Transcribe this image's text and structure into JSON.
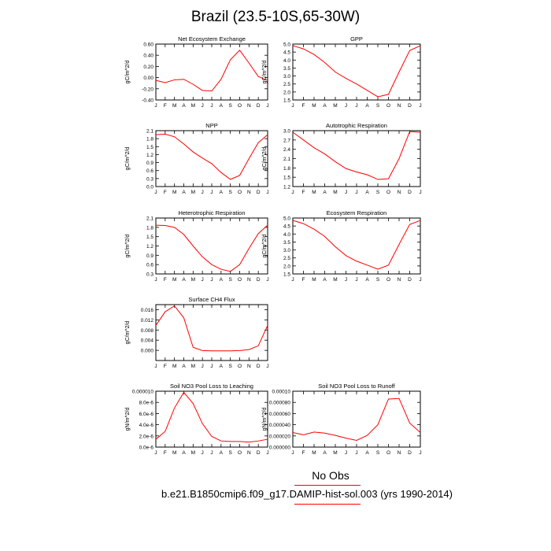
{
  "title": "Brazil (23.5-10S,65-30W)",
  "footer": {
    "no_obs": "No Obs",
    "case": "b.e21.B1850cmip6.f09_g17.DAMIP-hist-sol.003 (yrs 1990-2014)"
  },
  "line_color": "#ff0000",
  "chart_data": [
    {
      "type": "line",
      "title": "Net Ecosystem Exchange",
      "ylabel": "gC/m^2/d",
      "x": [
        "J",
        "F",
        "M",
        "A",
        "M",
        "J",
        "J",
        "A",
        "S",
        "O",
        "N",
        "D",
        "J"
      ],
      "ylim": [
        -0.4,
        0.6
      ],
      "yticks": [
        -0.4,
        -0.2,
        0.0,
        0.2,
        0.4,
        0.6
      ],
      "yticklabels": [
        "-0.40",
        "-0.20",
        "0.00",
        "0.20",
        "0.40",
        "0.60"
      ],
      "values": [
        -0.05,
        -0.09,
        -0.04,
        -0.03,
        -0.12,
        -0.23,
        -0.24,
        -0.03,
        0.32,
        0.49,
        0.26,
        0.02,
        -0.05
      ]
    },
    {
      "type": "line",
      "title": "GPP",
      "ylabel": "gC/m^2/d",
      "x": [
        "J",
        "F",
        "M",
        "A",
        "M",
        "J",
        "J",
        "A",
        "S",
        "O",
        "N",
        "D",
        "J"
      ],
      "ylim": [
        1.5,
        5.0
      ],
      "yticks": [
        1.5,
        2.0,
        2.5,
        3.0,
        3.5,
        4.0,
        4.5,
        5.0
      ],
      "yticklabels": [
        "1.5",
        "2.0",
        "2.5",
        "3.0",
        "3.5",
        "4.0",
        "4.5",
        "5.0"
      ],
      "values": [
        4.9,
        4.7,
        4.35,
        3.85,
        3.25,
        2.85,
        2.5,
        2.1,
        1.7,
        1.85,
        3.25,
        4.6,
        4.9
      ]
    },
    {
      "type": "line",
      "title": "NPP",
      "ylabel": "gC/m^2/d",
      "x": [
        "J",
        "F",
        "M",
        "A",
        "M",
        "J",
        "J",
        "A",
        "S",
        "O",
        "N",
        "D",
        "J"
      ],
      "ylim": [
        0.0,
        2.1
      ],
      "yticks": [
        0.0,
        0.3,
        0.6,
        0.9,
        1.2,
        1.5,
        1.8,
        2.1
      ],
      "yticklabels": [
        "0.0",
        "0.3",
        "0.6",
        "0.9",
        "1.2",
        "1.5",
        "1.8",
        "2.1"
      ],
      "values": [
        1.95,
        1.97,
        1.87,
        1.6,
        1.3,
        1.07,
        0.86,
        0.53,
        0.27,
        0.42,
        1.05,
        1.65,
        1.95
      ]
    },
    {
      "type": "line",
      "title": "Autotrophic Respiration",
      "ylabel": "gC/m^2/d",
      "x": [
        "J",
        "F",
        "M",
        "A",
        "M",
        "J",
        "J",
        "A",
        "S",
        "O",
        "N",
        "D",
        "J"
      ],
      "ylim": [
        1.2,
        3.0
      ],
      "yticks": [
        1.2,
        1.5,
        1.8,
        2.1,
        2.4,
        2.7,
        3.0
      ],
      "yticklabels": [
        "1.2",
        "1.5",
        "1.8",
        "2.1",
        "2.4",
        "2.7",
        "3.0"
      ],
      "values": [
        2.95,
        2.7,
        2.45,
        2.25,
        2.0,
        1.78,
        1.67,
        1.58,
        1.43,
        1.45,
        2.1,
        2.97,
        2.95
      ]
    },
    {
      "type": "line",
      "title": "Heterotrophic Respiration",
      "ylabel": "gC/m^2/d",
      "x": [
        "J",
        "F",
        "M",
        "A",
        "M",
        "J",
        "J",
        "A",
        "S",
        "O",
        "N",
        "D",
        "J"
      ],
      "ylim": [
        0.3,
        2.1
      ],
      "yticks": [
        0.3,
        0.6,
        0.9,
        1.2,
        1.5,
        1.8,
        2.1
      ],
      "yticklabels": [
        "0.3",
        "0.6",
        "0.9",
        "1.2",
        "1.5",
        "1.8",
        "2.1"
      ],
      "values": [
        1.87,
        1.86,
        1.8,
        1.57,
        1.2,
        0.85,
        0.6,
        0.45,
        0.38,
        0.6,
        1.12,
        1.6,
        1.87
      ]
    },
    {
      "type": "line",
      "title": "Ecosystem Respiration",
      "ylabel": "gC/m^2/d",
      "x": [
        "J",
        "F",
        "M",
        "A",
        "M",
        "J",
        "J",
        "A",
        "S",
        "O",
        "N",
        "D",
        "J"
      ],
      "ylim": [
        1.5,
        5.0
      ],
      "yticks": [
        1.5,
        2.0,
        2.5,
        3.0,
        3.5,
        4.0,
        4.5,
        5.0
      ],
      "yticklabels": [
        "1.5",
        "2.0",
        "2.5",
        "3.0",
        "3.5",
        "4.0",
        "4.5",
        "5.0"
      ],
      "values": [
        4.85,
        4.65,
        4.3,
        3.85,
        3.2,
        2.65,
        2.3,
        2.05,
        1.8,
        2.05,
        3.35,
        4.6,
        4.85
      ]
    },
    {
      "type": "line",
      "title": "Surface CH4 Flux",
      "ylabel": "gC/m^2/d",
      "x": [
        "J",
        "F",
        "M",
        "A",
        "M",
        "J",
        "J",
        "A",
        "S",
        "O",
        "N",
        "D",
        "J"
      ],
      "ylim": [
        -0.004,
        0.018
      ],
      "yticks": [
        0.0,
        0.004,
        0.008,
        0.012,
        0.016
      ],
      "yticklabels": [
        "0.000",
        "0.004",
        "0.008",
        "0.012",
        "0.016"
      ],
      "values": [
        0.0098,
        0.0152,
        0.0175,
        0.0128,
        0.0012,
        -0.0001,
        -0.0002,
        -0.0002,
        -0.0002,
        -0.0001,
        0.0003,
        0.0018,
        0.0098
      ]
    },
    {
      "type": "line",
      "title": "Soil NO3 Pool Loss to Leaching",
      "ylabel": "gN/m^2/d",
      "x": [
        "J",
        "F",
        "M",
        "A",
        "M",
        "J",
        "J",
        "A",
        "S",
        "O",
        "N",
        "D",
        "J"
      ],
      "ylim": [
        0.0,
        1e-05
      ],
      "yticks": [
        0.0,
        2e-06,
        4e-06,
        6e-06,
        8e-06,
        1e-05
      ],
      "yticklabels": [
        "0.0e-6",
        "2.0e-6",
        "4.0e-6",
        "6.0e-6",
        "8.0e-6",
        "0.000010"
      ],
      "values": [
        1.4e-06,
        2.8e-06,
        7e-06,
        9.8e-06,
        7.8e-06,
        4.2e-06,
        1.9e-06,
        1.1e-06,
        1e-06,
        1e-06,
        9e-07,
        1.1e-06,
        1.4e-06
      ]
    },
    {
      "type": "line",
      "title": "Soil NO3 Pool Loss to Runoff",
      "ylabel": "gN/m^2/d",
      "x": [
        "J",
        "F",
        "M",
        "A",
        "M",
        "J",
        "J",
        "A",
        "S",
        "O",
        "N",
        "D",
        "J"
      ],
      "ylim": [
        0.0,
        0.0001
      ],
      "yticks": [
        0.0,
        2e-05,
        4e-05,
        6e-05,
        8e-05,
        0.0001
      ],
      "yticklabels": [
        "0.000000",
        "0.000020",
        "0.000040",
        "0.000060",
        "0.000080",
        "0.00010"
      ],
      "values": [
        2.6e-05,
        2.2e-05,
        2.7e-05,
        2.5e-05,
        2.1e-05,
        1.6e-05,
        1.2e-05,
        2.1e-05,
        4e-05,
        8.6e-05,
        8.7e-05,
        4.3e-05,
        2.6e-05
      ]
    }
  ]
}
